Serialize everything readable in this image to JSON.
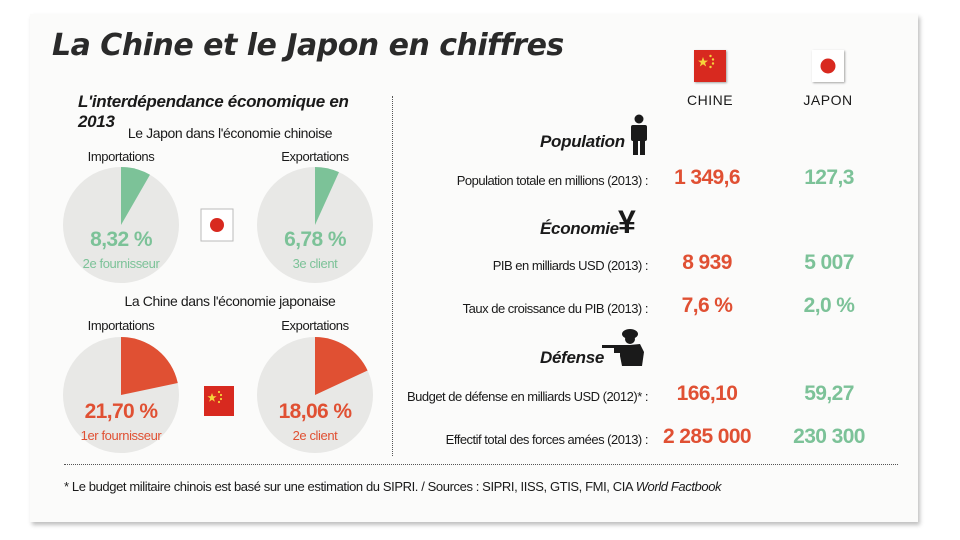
{
  "title": "La Chine et le Japon en chiffres",
  "interdependence": {
    "title": "L'interdépendance économique en 2013",
    "japan_in_china": {
      "heading": "Le Japon dans l'économie chinoise",
      "imports": {
        "label": "Importations",
        "pct_text": "8,32 %",
        "rank": "2e fournisseur",
        "share": 8.32
      },
      "exports": {
        "label": "Exportations",
        "pct_text": "6,78 %",
        "rank": "3e client",
        "share": 6.78
      }
    },
    "china_in_japan": {
      "heading": "La Chine dans l'économie japonaise",
      "imports": {
        "label": "Importations",
        "pct_text": "21,70 %",
        "rank": "1er fournisseur",
        "share": 21.7
      },
      "exports": {
        "label": "Exportations",
        "pct_text": "18,06 %",
        "rank": "2e client",
        "share": 18.06
      }
    }
  },
  "countries": {
    "china": "CHINE",
    "japan": "JAPON"
  },
  "categories": {
    "population": {
      "title": "Population",
      "icon": "person-icon",
      "rows": [
        {
          "label": "Population totale en millions (2013) :",
          "china": "1 349,6",
          "japan": "127,3"
        }
      ]
    },
    "economy": {
      "title": "Économie",
      "icon": "yen-icon",
      "rows": [
        {
          "label": "PIB en milliards USD (2013) :",
          "china": "8 939",
          "japan": "5 007"
        },
        {
          "label": "Taux de croissance du PIB (2013) :",
          "china": "7,6 %",
          "japan": "2,0 %"
        }
      ]
    },
    "defense": {
      "title": "Défense",
      "icon": "soldier-icon",
      "rows": [
        {
          "label": "Budget de défense en milliards USD (2012)* :",
          "china": "166,10",
          "japan": "59,27"
        },
        {
          "label": "Effectif total des forces amées (2013) :",
          "china": "2 285 000",
          "japan": "230 300"
        }
      ]
    }
  },
  "footnote": {
    "text": "* Le budget militaire chinois est basé sur une estimation du SIPRI.   /   Sources : SIPRI, IISS, GTIS, FMI, CIA ",
    "italic": "World Factbook"
  },
  "colors": {
    "china_red": "#e05033",
    "japan_green": "#7cc298",
    "pie_bg": "#e8e8e6"
  },
  "chart_data": [
    {
      "type": "pie",
      "title": "Importations",
      "values": [
        8.32
      ],
      "unit": "%"
    },
    {
      "type": "pie",
      "title": "Exportations",
      "values": [
        6.78
      ],
      "unit": "%"
    },
    {
      "type": "pie",
      "title": "Importations",
      "values": [
        21.7
      ],
      "unit": "%"
    },
    {
      "type": "pie",
      "title": "Exportations",
      "values": [
        18.06
      ],
      "unit": "%"
    }
  ]
}
